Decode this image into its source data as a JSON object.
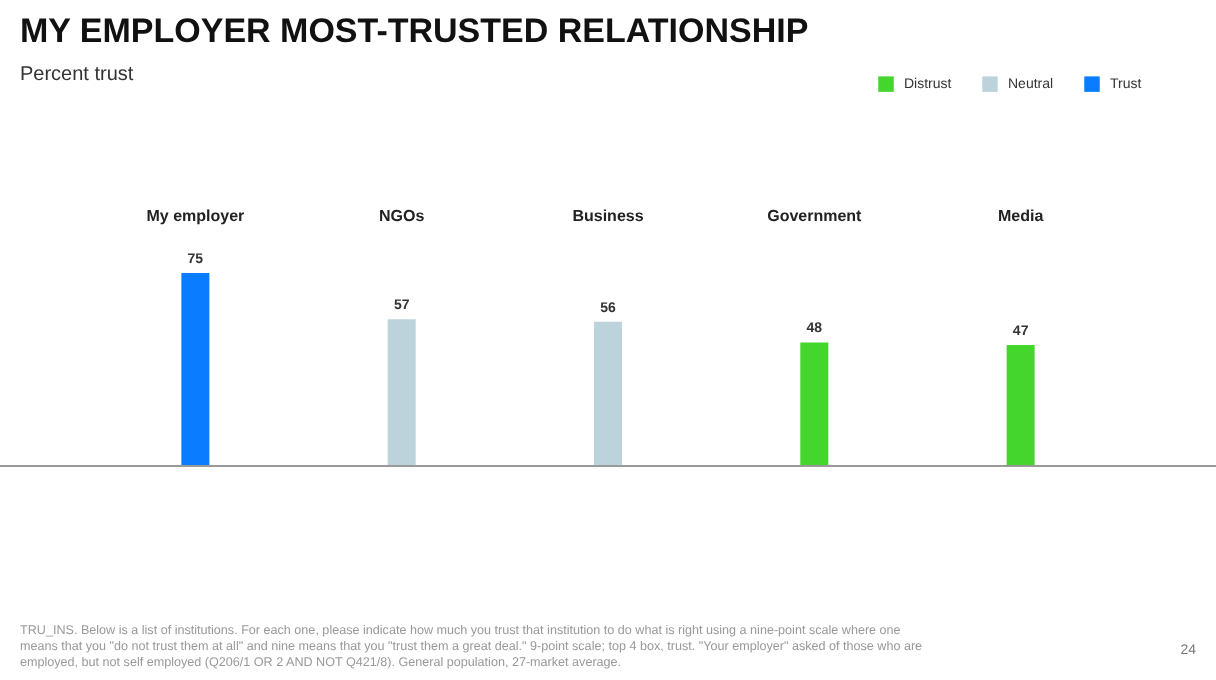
{
  "chart_data": {
    "type": "bar",
    "title": "MY EMPLOYER MOST-TRUSTED RELATIONSHIP",
    "subtitle": "Percent trust",
    "categories": [
      "My employer",
      "NGOs",
      "Business",
      "Government",
      "Media"
    ],
    "series": [
      {
        "name": "Distrust",
        "color": "#44d62c",
        "values": [
          null,
          null,
          null,
          48,
          47
        ]
      },
      {
        "name": "Neutral",
        "color": "#bdd3dc",
        "values": [
          null,
          57,
          56,
          null,
          null
        ]
      },
      {
        "name": "Trust",
        "color": "#0a7cff",
        "values": [
          75,
          null,
          null,
          null,
          null
        ]
      }
    ],
    "data_labels": true,
    "legend": "top right",
    "annotations": [
      "TRU_INS. Below is a list of institutions. For each one, please indicate how much you trust that institution to do what is right using a nine-point scale where one means that you \"do not trust them at all\" and nine means that you \"trust them a great deal.\" 9-point scale; top 4 box, trust. \"Your employer\" asked of those who are employed, but not self employed (Q206/1 OR 2 AND NOT Q421/8). General population, 27-market average.",
      "24"
    ]
  }
}
